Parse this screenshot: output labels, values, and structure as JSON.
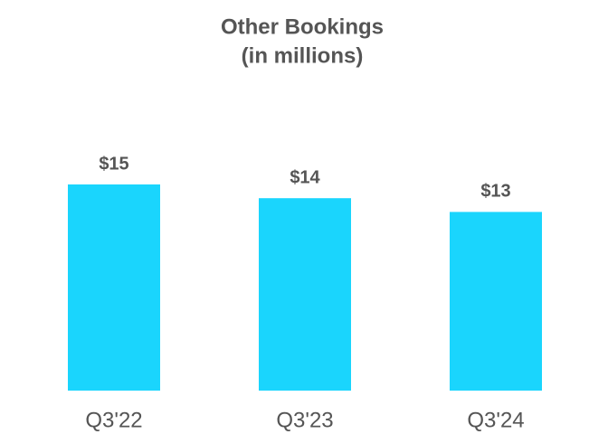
{
  "chart_data": {
    "type": "bar",
    "title": "Other Bookings",
    "subtitle": "(in millions)",
    "categories": [
      "Q3'22",
      "Q3'23",
      "Q3'24"
    ],
    "values": [
      15,
      14,
      13
    ],
    "value_labels": [
      "$15",
      "$14",
      "$13"
    ],
    "color": "#1ad5fd"
  }
}
